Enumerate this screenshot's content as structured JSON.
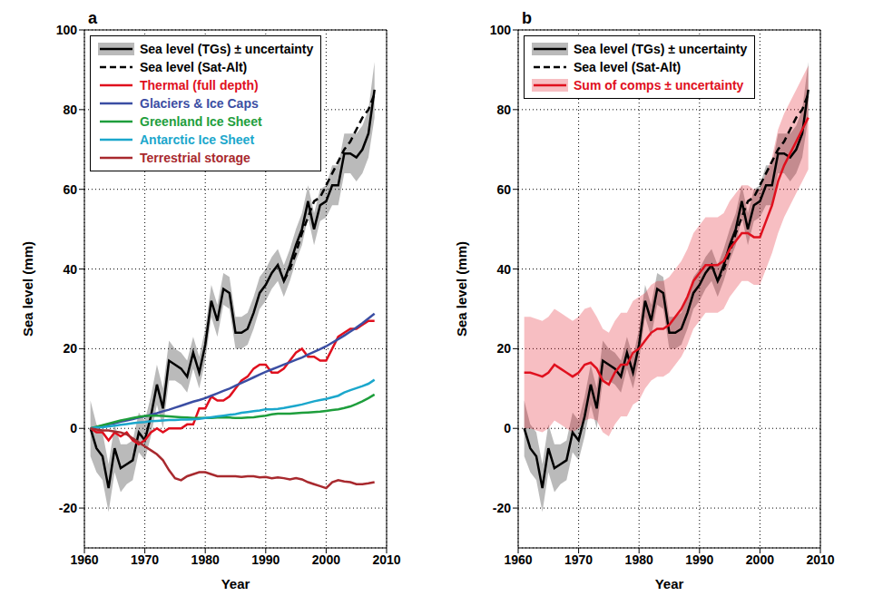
{
  "chart_data": [
    {
      "type": "line",
      "title": "a",
      "x_label": "Year",
      "y_label": "Sea level (mm)",
      "xlim": [
        1960,
        2010
      ],
      "xticks": [
        1960,
        1970,
        1980,
        1990,
        2000,
        2010
      ],
      "ylim": [
        -30,
        100
      ],
      "yticks": [
        -20,
        0,
        20,
        40,
        60,
        80,
        100
      ],
      "grid": true,
      "legend": "upper left",
      "x": [
        1961,
        1962,
        1963,
        1964,
        1965,
        1966,
        1967,
        1968,
        1969,
        1970,
        1971,
        1972,
        1973,
        1974,
        1975,
        1976,
        1977,
        1978,
        1979,
        1980,
        1981,
        1982,
        1983,
        1984,
        1985,
        1986,
        1987,
        1988,
        1989,
        1990,
        1991,
        1992,
        1993,
        1994,
        1995,
        1996,
        1997,
        1998,
        1999,
        2000,
        2001,
        2002,
        2003,
        2004,
        2005,
        2006,
        2007,
        2008
      ],
      "series": [
        {
          "name": "Sea level (TGs) ± uncertainty",
          "color": "#000000",
          "line_style": "solid",
          "values": [
            0,
            -5,
            -7,
            -15,
            -5,
            -10,
            -9,
            -8,
            -1,
            -3,
            3,
            11,
            5,
            17,
            16,
            15,
            13,
            19,
            14,
            21,
            32,
            27,
            35,
            34,
            24,
            24,
            25,
            29,
            34,
            36,
            39,
            41,
            37,
            41,
            46,
            50,
            57,
            50,
            56,
            57,
            61,
            61,
            69,
            69,
            68,
            70,
            74,
            85
          ],
          "uncertainty": [
            7,
            6,
            6,
            6,
            6,
            6,
            5,
            5,
            5,
            5,
            5,
            5,
            5,
            5,
            4,
            4,
            4,
            4,
            4,
            4,
            4,
            4,
            4,
            4,
            4,
            4,
            4,
            4,
            4,
            4,
            4,
            4,
            4,
            4,
            4,
            4,
            4,
            4,
            4,
            4,
            5,
            5,
            5,
            5,
            6,
            6,
            6,
            7
          ]
        },
        {
          "name": "Sea level (Sat-Alt)",
          "color": "#000000",
          "line_style": "dashed",
          "values": [
            null,
            null,
            null,
            null,
            null,
            null,
            null,
            null,
            null,
            null,
            null,
            null,
            null,
            null,
            null,
            null,
            null,
            null,
            null,
            null,
            null,
            null,
            null,
            null,
            null,
            null,
            null,
            null,
            null,
            null,
            null,
            null,
            37,
            40,
            44,
            49,
            53,
            57,
            58,
            61,
            64,
            67,
            70,
            72,
            75,
            78,
            80,
            84
          ]
        },
        {
          "name": "Thermal (full depth)",
          "color": "#e0101e",
          "line_style": "solid",
          "values": [
            0,
            -1,
            -1,
            -3,
            -1,
            -2,
            -1,
            -3,
            -4,
            -3,
            -1,
            0,
            -1,
            0,
            0,
            0,
            1,
            1,
            5,
            5,
            8,
            7,
            7,
            8,
            10,
            12,
            13,
            15,
            16,
            16,
            14,
            14,
            15,
            17,
            19,
            20,
            18,
            18,
            17,
            17,
            20,
            23,
            24,
            25,
            25,
            26,
            27,
            27
          ]
        },
        {
          "name": "Glaciers & Ice Caps",
          "color": "#3b4ea3",
          "line_style": "solid",
          "values": [
            0,
            0.3,
            0.7,
            1,
            1.3,
            1.7,
            2,
            2.3,
            2.7,
            3,
            3.4,
            3.8,
            4.3,
            4.7,
            5.2,
            5.7,
            6.2,
            6.7,
            7.1,
            7.6,
            8.2,
            8.8,
            9.4,
            10,
            10.7,
            11.4,
            12.1,
            12.8,
            13.5,
            14.2,
            14.8,
            15.4,
            16,
            16.6,
            17.2,
            17.8,
            18.5,
            19.2,
            19.9,
            20.6,
            21.5,
            22.4,
            23.3,
            24.3,
            25.3,
            26.4,
            27.6,
            28.8
          ]
        },
        {
          "name": "Greenland Ice Sheet",
          "color": "#1e9e3c",
          "line_style": "solid",
          "values": [
            0,
            0.4,
            0.8,
            1.2,
            1.6,
            2,
            2.3,
            2.6,
            2.9,
            3.1,
            3.2,
            3.2,
            3.1,
            3,
            2.9,
            2.8,
            2.7,
            2.6,
            2.6,
            2.6,
            2.6,
            2.7,
            2.7,
            2.7,
            2.6,
            2.6,
            2.7,
            2.8,
            3,
            3.2,
            3.5,
            3.7,
            3.7,
            3.7,
            3.8,
            3.9,
            4,
            4.1,
            4.2,
            4.4,
            4.6,
            4.8,
            5.1,
            5.5,
            6.1,
            6.8,
            7.6,
            8.5
          ]
        },
        {
          "name": "Antarctic Ice Sheet",
          "color": "#1ba7cc",
          "line_style": "solid",
          "values": [
            0,
            0.2,
            0.3,
            0.5,
            0.7,
            0.9,
            1.1,
            1.3,
            1.5,
            1.6,
            1.8,
            1.9,
            2,
            2.1,
            2.1,
            2.2,
            2.2,
            2.3,
            2.4,
            2.6,
            2.8,
            3,
            3.2,
            3.4,
            3.6,
            3.9,
            4.1,
            4.3,
            4.5,
            4.8,
            4.8,
            4.9,
            5.1,
            5.4,
            5.7,
            6,
            6.4,
            6.8,
            7.1,
            7.4,
            7.8,
            8.2,
            9,
            9.6,
            10.1,
            10.6,
            11.2,
            12.2
          ]
        },
        {
          "name": "Terrestrial storage",
          "color": "#a8292e",
          "line_style": "solid",
          "values": [
            0,
            -0.3,
            -0.5,
            -0.5,
            -0.8,
            -1,
            -1.5,
            -2.5,
            -3.5,
            -4.5,
            -5.5,
            -6.5,
            -8,
            -10.5,
            -12.5,
            -13,
            -12,
            -11.5,
            -11,
            -11,
            -11.5,
            -12,
            -12,
            -12,
            -12,
            -12.2,
            -12,
            -12,
            -12.3,
            -12.2,
            -12.5,
            -12.3,
            -12.5,
            -12.8,
            -12.5,
            -12.8,
            -13.5,
            -14,
            -14.5,
            -15,
            -13.5,
            -13,
            -13.3,
            -13.5,
            -14,
            -14,
            -13.8,
            -13.5
          ]
        }
      ]
    },
    {
      "type": "line",
      "title": "b",
      "x_label": "Year",
      "y_label": "Sea level (mm)",
      "xlim": [
        1960,
        2010
      ],
      "xticks": [
        1960,
        1970,
        1980,
        1990,
        2000,
        2010
      ],
      "ylim": [
        -30,
        100
      ],
      "yticks": [
        -20,
        0,
        20,
        40,
        60,
        80,
        100
      ],
      "grid": true,
      "legend": "upper left",
      "x": [
        1961,
        1962,
        1963,
        1964,
        1965,
        1966,
        1967,
        1968,
        1969,
        1970,
        1971,
        1972,
        1973,
        1974,
        1975,
        1976,
        1977,
        1978,
        1979,
        1980,
        1981,
        1982,
        1983,
        1984,
        1985,
        1986,
        1987,
        1988,
        1989,
        1990,
        1991,
        1992,
        1993,
        1994,
        1995,
        1996,
        1997,
        1998,
        1999,
        2000,
        2001,
        2002,
        2003,
        2004,
        2005,
        2006,
        2007,
        2008
      ],
      "series": [
        {
          "name": "Sea level (TGs) ± uncertainty",
          "color": "#000000",
          "line_style": "solid",
          "values": [
            0,
            -5,
            -7,
            -15,
            -5,
            -10,
            -9,
            -8,
            -1,
            -3,
            3,
            11,
            5,
            17,
            16,
            15,
            13,
            19,
            14,
            21,
            32,
            27,
            35,
            34,
            24,
            24,
            25,
            29,
            34,
            36,
            39,
            41,
            37,
            41,
            46,
            50,
            57,
            50,
            56,
            57,
            61,
            61,
            69,
            69,
            68,
            70,
            74,
            85
          ],
          "uncertainty": [
            7,
            6,
            6,
            6,
            6,
            6,
            5,
            5,
            5,
            5,
            5,
            5,
            5,
            5,
            4,
            4,
            4,
            4,
            4,
            4,
            4,
            4,
            4,
            4,
            4,
            4,
            4,
            4,
            4,
            4,
            4,
            4,
            4,
            4,
            4,
            4,
            4,
            4,
            4,
            4,
            5,
            5,
            5,
            5,
            6,
            6,
            6,
            7
          ]
        },
        {
          "name": "Sea level (Sat-Alt)",
          "color": "#000000",
          "line_style": "dashed",
          "values": [
            null,
            null,
            null,
            null,
            null,
            null,
            null,
            null,
            null,
            null,
            null,
            null,
            null,
            null,
            null,
            null,
            null,
            null,
            null,
            null,
            null,
            null,
            null,
            null,
            null,
            null,
            null,
            null,
            null,
            null,
            null,
            null,
            37,
            40,
            44,
            49,
            53,
            57,
            58,
            61,
            64,
            67,
            70,
            72,
            75,
            78,
            80,
            84
          ]
        },
        {
          "name": "Sum of comps ± uncertainty",
          "color": "#e0101e",
          "line_style": "solid",
          "values": [
            14,
            14,
            13.5,
            13,
            14,
            16,
            15,
            14,
            13,
            14,
            16,
            16.5,
            15,
            12,
            11,
            14,
            16,
            16,
            19,
            20,
            22,
            24,
            25,
            25,
            26,
            28,
            30,
            33,
            37,
            39,
            41,
            41,
            41,
            42,
            45,
            47,
            49,
            49,
            48,
            48,
            52,
            56,
            62,
            66,
            69,
            72,
            75,
            78
          ],
          "uncertainty": [
            14,
            14,
            14,
            14,
            14,
            14,
            14,
            14,
            14,
            14,
            14,
            14,
            13,
            13,
            13,
            13,
            13,
            13,
            13,
            13,
            12,
            12,
            12,
            12,
            12,
            12,
            12,
            12,
            12,
            12,
            12,
            12,
            12,
            12,
            12,
            12,
            12,
            12,
            12,
            12,
            12,
            12,
            13,
            13,
            13,
            13,
            13,
            13
          ]
        }
      ]
    }
  ]
}
